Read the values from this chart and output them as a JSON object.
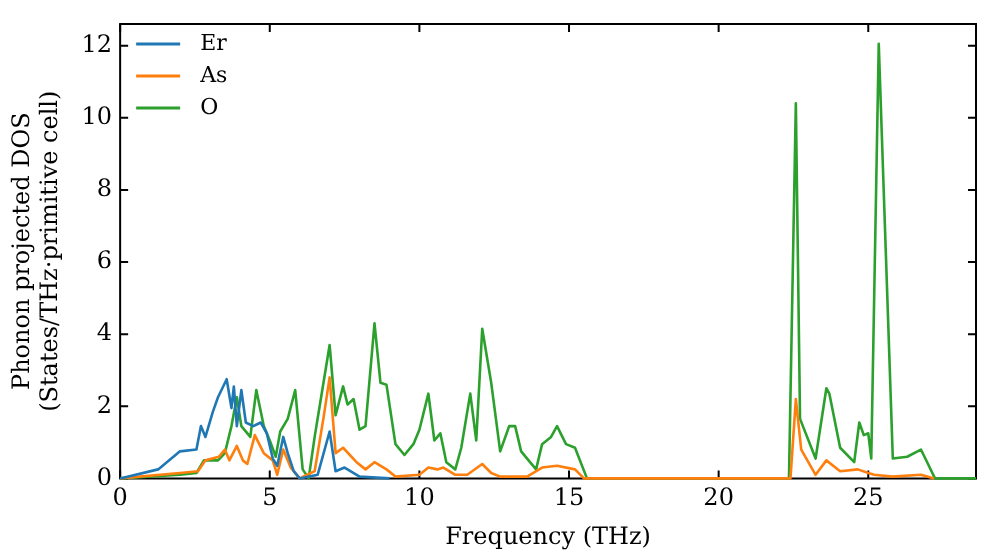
{
  "chart_data": {
    "type": "line",
    "xlabel": "Frequency (THz)",
    "ylabel": "Phonon projected DOS\n(States/THz·primitive cell)",
    "xlim": [
      0,
      28.6
    ],
    "ylim": [
      0,
      12.6
    ],
    "xticks": [
      0,
      5,
      10,
      15,
      20,
      25
    ],
    "yticks": [
      0,
      2,
      4,
      6,
      8,
      10,
      12
    ],
    "grid": false,
    "legend": "top left",
    "marker": "none",
    "line_style": "solid",
    "series": [
      {
        "name": "Er",
        "color": "#1f77b4",
        "x": [
          0,
          1.27,
          2.0,
          2.55,
          2.7,
          2.85,
          3.1,
          3.27,
          3.56,
          3.72,
          3.8,
          3.9,
          4.05,
          4.2,
          4.45,
          4.7,
          4.9,
          5.1,
          5.25,
          5.45,
          5.6,
          5.8,
          6.0,
          6.6,
          7.0,
          7.2,
          7.5,
          8.0,
          9.0
        ],
        "values": [
          0,
          0.25,
          0.75,
          0.8,
          1.45,
          1.15,
          1.85,
          2.25,
          2.75,
          1.95,
          2.55,
          1.45,
          2.45,
          1.55,
          1.45,
          1.55,
          1.25,
          0.55,
          0.35,
          1.15,
          0.7,
          0.2,
          0,
          0.1,
          1.3,
          0.2,
          0.3,
          0.05,
          0
        ]
      },
      {
        "name": "As",
        "color": "#ff7f0e",
        "x": [
          0,
          2.0,
          2.6,
          2.85,
          3.3,
          3.5,
          3.65,
          3.9,
          4.1,
          4.25,
          4.5,
          4.8,
          5.1,
          5.25,
          5.45,
          5.7,
          6.0,
          6.5,
          6.8,
          7.0,
          7.2,
          7.45,
          7.9,
          8.2,
          8.5,
          8.9,
          9.2,
          10.0,
          10.3,
          10.6,
          10.8,
          11.2,
          11.6,
          12.1,
          12.4,
          12.7,
          13.6,
          14.1,
          14.6,
          15.2,
          15.5,
          22.4,
          22.58,
          22.76,
          23.24,
          23.6,
          24.06,
          24.65,
          25.0,
          25.2,
          25.8,
          26.76,
          27.2
        ],
        "values": [
          0,
          0.15,
          0.2,
          0.5,
          0.6,
          0.8,
          0.5,
          0.9,
          0.5,
          0.4,
          1.2,
          0.7,
          0.5,
          0.1,
          0.8,
          0.3,
          0,
          0.2,
          1.7,
          2.8,
          0.7,
          0.85,
          0.45,
          0.25,
          0.45,
          0.25,
          0.05,
          0.1,
          0.3,
          0.25,
          0.3,
          0.1,
          0.1,
          0.4,
          0.15,
          0.05,
          0.05,
          0.3,
          0.35,
          0.25,
          0,
          0,
          2.2,
          0.8,
          0.1,
          0.5,
          0.2,
          0.25,
          0.15,
          0.1,
          0.05,
          0.1,
          0
        ]
      },
      {
        "name": "O",
        "color": "#2ca02c",
        "x": [
          0,
          2.0,
          2.55,
          2.8,
          3.27,
          3.5,
          3.72,
          3.9,
          4.05,
          4.35,
          4.55,
          4.8,
          5.0,
          5.2,
          5.35,
          5.6,
          5.85,
          6.1,
          6.3,
          6.5,
          7.0,
          7.2,
          7.45,
          7.6,
          7.8,
          8.0,
          8.2,
          8.5,
          8.7,
          8.9,
          9.2,
          9.5,
          9.8,
          10.0,
          10.3,
          10.5,
          10.7,
          10.9,
          11.2,
          11.4,
          11.7,
          11.9,
          12.1,
          12.4,
          12.7,
          13.0,
          13.2,
          13.4,
          13.6,
          13.9,
          14.1,
          14.4,
          14.6,
          14.9,
          15.2,
          15.6,
          22.35,
          22.58,
          22.72,
          23.24,
          23.6,
          23.7,
          24.06,
          24.53,
          24.7,
          24.85,
          25.0,
          25.1,
          25.35,
          25.82,
          26.3,
          26.76,
          27.23,
          28.6
        ],
        "values": [
          0,
          0.1,
          0.15,
          0.5,
          0.5,
          0.7,
          1.45,
          2.25,
          1.45,
          1.15,
          2.45,
          1.45,
          1.05,
          0.6,
          1.3,
          1.65,
          2.45,
          0.25,
          0,
          1.15,
          3.7,
          1.75,
          2.55,
          2.05,
          2.2,
          1.35,
          1.45,
          4.3,
          2.65,
          2.6,
          0.95,
          0.65,
          0.95,
          1.35,
          2.35,
          1.05,
          1.25,
          0.45,
          0.25,
          0.85,
          2.35,
          1.05,
          4.15,
          2.65,
          0.75,
          1.45,
          1.45,
          0.75,
          0.55,
          0.25,
          0.95,
          1.15,
          1.45,
          0.95,
          0.85,
          0,
          0,
          10.4,
          1.65,
          0.55,
          2.5,
          2.35,
          0.85,
          0.45,
          1.55,
          1.2,
          1.25,
          0.55,
          12.05,
          0.55,
          0.6,
          0.8,
          0,
          0
        ]
      }
    ]
  }
}
